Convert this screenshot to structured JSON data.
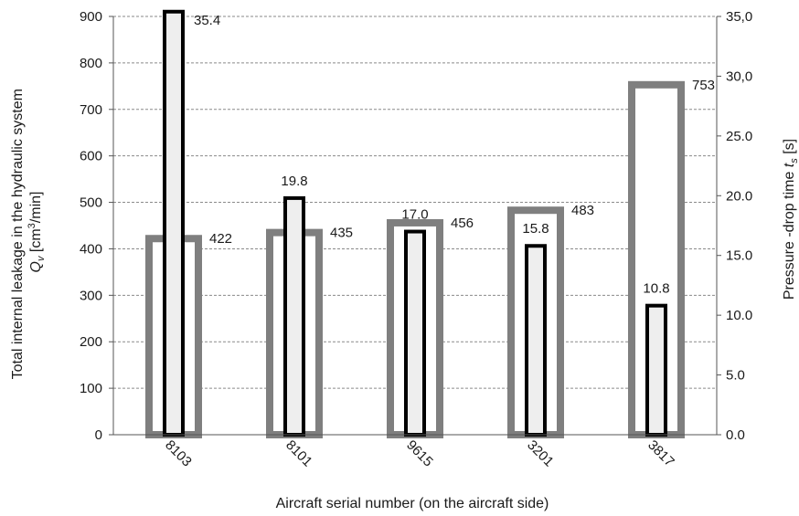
{
  "chart_data": {
    "type": "bar",
    "title": "",
    "xlabel": "Aircraft serial number (on the aircraft side)",
    "ylabel_left_line1": "Total internal leakage in the hydraulic system",
    "ylabel_left_line2_var": "Q",
    "ylabel_left_line2_sub": "v",
    "ylabel_left_line2_unit_pre": " [cm",
    "ylabel_left_line2_unit_sup": "3",
    "ylabel_left_line2_unit_post": "/min]",
    "ylabel_right_pre": "Pressure -drop time ",
    "ylabel_right_var": "t",
    "ylabel_right_sub": "s",
    "ylabel_right_post": " [s]",
    "categories": [
      "8103",
      "8101",
      "9615",
      "3201",
      "3817"
    ],
    "ylim_left": [
      0,
      900
    ],
    "ylim_right": [
      0,
      35
    ],
    "y_left_ticks": [
      "0",
      "100",
      "200",
      "300",
      "400",
      "500",
      "600",
      "700",
      "800",
      "900"
    ],
    "y_right_ticks": [
      "0.0",
      "5.0",
      "10.0",
      "15.0",
      "20.0",
      "25.0",
      "30,0",
      "35,0"
    ],
    "grid": true,
    "series": [
      {
        "axis": "left",
        "values": [
          422,
          435,
          456,
          483,
          753
        ],
        "labels": [
          "422",
          "435",
          "456",
          "483",
          "753"
        ],
        "stroke": "#7f7f7f",
        "fill": "#ffffff"
      },
      {
        "axis": "right",
        "values": [
          35.4,
          19.8,
          17.0,
          15.8,
          10.8
        ],
        "labels": [
          "35.4",
          "19.8",
          "17.0",
          "15.8",
          "10.8"
        ],
        "stroke": "#000000",
        "fill": "#eeeeee"
      }
    ]
  }
}
